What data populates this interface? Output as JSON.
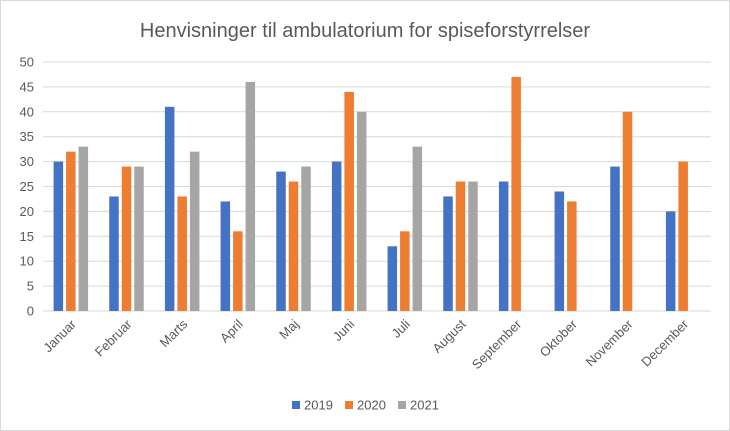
{
  "chart_data": {
    "type": "bar",
    "title": "Henvisninger til ambulatorium for spiseforstyrrelser",
    "xlabel": "",
    "ylabel": "",
    "ylim": [
      0,
      50
    ],
    "yticks": [
      0,
      5,
      10,
      15,
      20,
      25,
      30,
      35,
      40,
      45,
      50
    ],
    "grid": true,
    "legend_position": "bottom",
    "categories": [
      "Januar",
      "Februar",
      "Marts",
      "April",
      "Maj",
      "Juni",
      "Juli",
      "August",
      "September",
      "Oktober",
      "November",
      "December"
    ],
    "series": [
      {
        "name": "2019",
        "color": "#4472c4",
        "values": [
          30,
          23,
          41,
          22,
          28,
          30,
          13,
          23,
          26,
          24,
          29,
          20
        ]
      },
      {
        "name": "2020",
        "color": "#ed7d31",
        "values": [
          32,
          29,
          23,
          16,
          26,
          44,
          16,
          26,
          47,
          22,
          40,
          30
        ]
      },
      {
        "name": "2021",
        "color": "#a5a5a5",
        "values": [
          33,
          29,
          32,
          46,
          29,
          40,
          33,
          26,
          null,
          null,
          null,
          null
        ]
      }
    ]
  }
}
